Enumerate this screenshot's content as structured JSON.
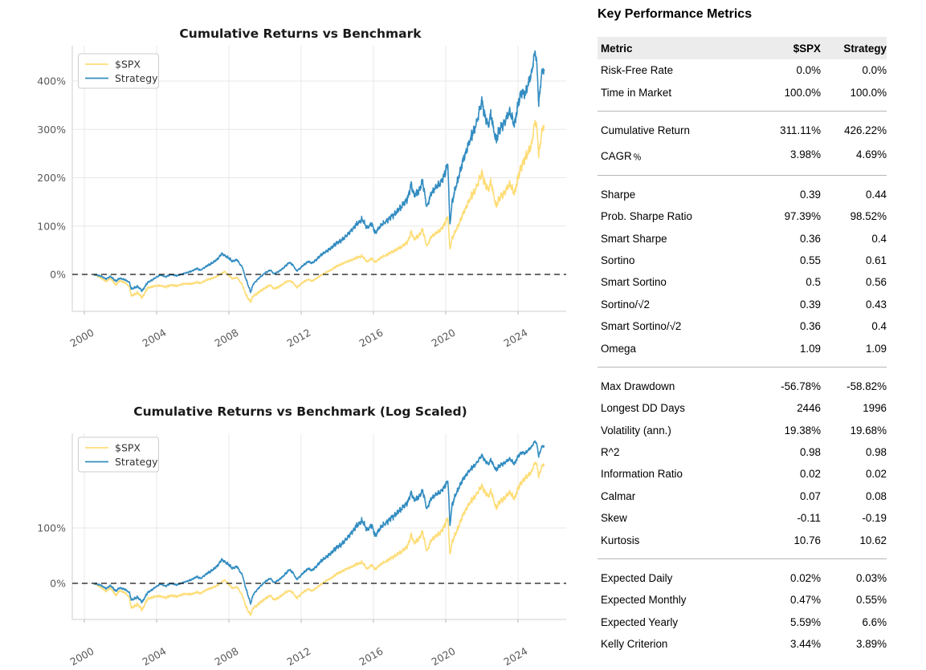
{
  "metrics_table": {
    "title": "Key Performance Metrics",
    "columns": [
      "Metric",
      "$SPX",
      "Strategy"
    ],
    "groups": [
      {
        "rows": [
          [
            "Risk-Free Rate",
            "0.0%",
            "0.0%"
          ],
          [
            "Time in Market",
            "100.0%",
            "100.0%"
          ]
        ]
      },
      {
        "rows": [
          [
            "Cumulative Return",
            "311.11%",
            "426.22%"
          ],
          [
            "CAGR﹪",
            "3.98%",
            "4.69%"
          ]
        ]
      },
      {
        "rows": [
          [
            "Sharpe",
            "0.39",
            "0.44"
          ],
          [
            "Prob. Sharpe Ratio",
            "97.39%",
            "98.52%"
          ],
          [
            "Smart Sharpe",
            "0.36",
            "0.4"
          ],
          [
            "Sortino",
            "0.55",
            "0.61"
          ],
          [
            "Smart Sortino",
            "0.5",
            "0.56"
          ],
          [
            "Sortino/√2",
            "0.39",
            "0.43"
          ],
          [
            "Smart Sortino/√2",
            "0.36",
            "0.4"
          ],
          [
            "Omega",
            "1.09",
            "1.09"
          ]
        ]
      },
      {
        "rows": [
          [
            "Max Drawdown",
            "-56.78%",
            "-58.82%"
          ],
          [
            "Longest DD Days",
            "2446",
            "1996"
          ],
          [
            "Volatility (ann.)",
            "19.38%",
            "19.68%"
          ],
          [
            "R^2",
            "0.98",
            "0.98"
          ],
          [
            "Information Ratio",
            "0.02",
            "0.02"
          ],
          [
            "Calmar",
            "0.07",
            "0.08"
          ],
          [
            "Skew",
            "-0.11",
            "-0.19"
          ],
          [
            "Kurtosis",
            "10.76",
            "10.62"
          ]
        ]
      },
      {
        "rows": [
          [
            "Expected Daily",
            "0.02%",
            "0.03%"
          ],
          [
            "Expected Monthly",
            "0.47%",
            "0.55%"
          ],
          [
            "Expected Yearly",
            "5.59%",
            "6.6%"
          ],
          [
            "Kelly Criterion",
            "3.44%",
            "3.89%"
          ]
        ]
      }
    ]
  },
  "chart_data": [
    {
      "type": "line",
      "title": "Cumulative Returns vs Benchmark",
      "y_scale": "linear",
      "y_axis_format": "percent",
      "x_ticks": [
        2000,
        2004,
        2008,
        2012,
        2016,
        2020,
        2024
      ],
      "x_range": [
        1999.3,
        2026.7
      ],
      "y_ticks_pct": [
        0,
        100,
        200,
        300,
        400
      ],
      "zero_line": "dashed-black",
      "grid": true,
      "legend_position": "upper-left",
      "series": [
        {
          "name": "$SPX",
          "color": "#fedd78",
          "final_value_pct": 311.11,
          "anchors": [
            [
              2000.55,
              0
            ],
            [
              2000.75,
              -4
            ],
            [
              2000.95,
              -8
            ],
            [
              2001.2,
              -14
            ],
            [
              2001.45,
              -8
            ],
            [
              2001.75,
              -22
            ],
            [
              2001.95,
              -13
            ],
            [
              2002.25,
              -17
            ],
            [
              2002.5,
              -26
            ],
            [
              2002.6,
              -44
            ],
            [
              2002.75,
              -42
            ],
            [
              2002.95,
              -38
            ],
            [
              2003.2,
              -48
            ],
            [
              2003.5,
              -28
            ],
            [
              2003.9,
              -24
            ],
            [
              2004.2,
              -23
            ],
            [
              2004.5,
              -26
            ],
            [
              2004.8,
              -22
            ],
            [
              2005.1,
              -24
            ],
            [
              2005.5,
              -19
            ],
            [
              2005.9,
              -20
            ],
            [
              2006.2,
              -16
            ],
            [
              2006.45,
              -18
            ],
            [
              2006.8,
              -11
            ],
            [
              2007.1,
              -8
            ],
            [
              2007.4,
              -3
            ],
            [
              2007.75,
              6
            ],
            [
              2007.95,
              0
            ],
            [
              2008.2,
              -9
            ],
            [
              2008.45,
              -6
            ],
            [
              2008.6,
              -14
            ],
            [
              2008.75,
              -22
            ],
            [
              2008.9,
              -38
            ],
            [
              2009.0,
              -46
            ],
            [
              2009.2,
              -57
            ],
            [
              2009.35,
              -44
            ],
            [
              2009.55,
              -40
            ],
            [
              2009.75,
              -34
            ],
            [
              2010.0,
              -28
            ],
            [
              2010.3,
              -22
            ],
            [
              2010.5,
              -30
            ],
            [
              2010.8,
              -25
            ],
            [
              2011.1,
              -17
            ],
            [
              2011.35,
              -13
            ],
            [
              2011.55,
              -17
            ],
            [
              2011.75,
              -27
            ],
            [
              2011.95,
              -21
            ],
            [
              2012.15,
              -15
            ],
            [
              2012.4,
              -10
            ],
            [
              2012.6,
              -14
            ],
            [
              2012.85,
              -8
            ],
            [
              2013.1,
              -2
            ],
            [
              2013.4,
              5
            ],
            [
              2013.7,
              10
            ],
            [
              2013.95,
              17
            ],
            [
              2014.2,
              21
            ],
            [
              2014.5,
              26
            ],
            [
              2014.8,
              30
            ],
            [
              2015.1,
              35
            ],
            [
              2015.4,
              38
            ],
            [
              2015.65,
              26
            ],
            [
              2015.9,
              33
            ],
            [
              2016.1,
              25
            ],
            [
              2016.4,
              35
            ],
            [
              2016.7,
              40
            ],
            [
              2016.95,
              45
            ],
            [
              2017.3,
              52
            ],
            [
              2017.6,
              58
            ],
            [
              2017.9,
              68
            ],
            [
              2018.1,
              88
            ],
            [
              2018.25,
              72
            ],
            [
              2018.5,
              80
            ],
            [
              2018.72,
              93
            ],
            [
              2018.95,
              57
            ],
            [
              2019.2,
              78
            ],
            [
              2019.45,
              85
            ],
            [
              2019.7,
              91
            ],
            [
              2019.95,
              105
            ],
            [
              2020.12,
              120
            ],
            [
              2020.23,
              52
            ],
            [
              2020.35,
              75
            ],
            [
              2020.55,
              90
            ],
            [
              2020.75,
              105
            ],
            [
              2020.95,
              125
            ],
            [
              2021.2,
              145
            ],
            [
              2021.45,
              165
            ],
            [
              2021.65,
              175
            ],
            [
              2021.85,
              195
            ],
            [
              2022.0,
              210
            ],
            [
              2022.15,
              190
            ],
            [
              2022.35,
              175
            ],
            [
              2022.5,
              190
            ],
            [
              2022.65,
              165
            ],
            [
              2022.78,
              142
            ],
            [
              2022.95,
              155
            ],
            [
              2023.1,
              162
            ],
            [
              2023.35,
              175
            ],
            [
              2023.55,
              188
            ],
            [
              2023.8,
              168
            ],
            [
              2024.0,
              200
            ],
            [
              2024.2,
              225
            ],
            [
              2024.4,
              240
            ],
            [
              2024.6,
              255
            ],
            [
              2024.75,
              270
            ],
            [
              2024.95,
              318
            ],
            [
              2025.05,
              300
            ],
            [
              2025.15,
              245
            ],
            [
              2025.3,
              292
            ],
            [
              2025.45,
              311
            ]
          ]
        },
        {
          "name": "Strategy",
          "color": "#348dc1",
          "final_value_pct": 426.22,
          "anchors": [
            [
              2000.55,
              0
            ],
            [
              2000.75,
              -2
            ],
            [
              2000.95,
              -4
            ],
            [
              2001.2,
              -9
            ],
            [
              2001.45,
              -4
            ],
            [
              2001.75,
              -14
            ],
            [
              2001.95,
              -8
            ],
            [
              2002.25,
              -11
            ],
            [
              2002.5,
              -17
            ],
            [
              2002.6,
              -30
            ],
            [
              2002.75,
              -28
            ],
            [
              2002.95,
              -25
            ],
            [
              2003.2,
              -34
            ],
            [
              2003.5,
              -17
            ],
            [
              2003.9,
              -8
            ],
            [
              2004.2,
              -1
            ],
            [
              2004.5,
              -5
            ],
            [
              2004.8,
              0
            ],
            [
              2005.1,
              -3
            ],
            [
              2005.5,
              2
            ],
            [
              2005.9,
              6
            ],
            [
              2006.2,
              12
            ],
            [
              2006.45,
              9
            ],
            [
              2006.8,
              18
            ],
            [
              2007.1,
              24
            ],
            [
              2007.4,
              33
            ],
            [
              2007.6,
              43
            ],
            [
              2007.8,
              38
            ],
            [
              2007.95,
              35
            ],
            [
              2008.2,
              27
            ],
            [
              2008.45,
              31
            ],
            [
              2008.6,
              22
            ],
            [
              2008.75,
              15
            ],
            [
              2008.9,
              -5
            ],
            [
              2009.0,
              -15
            ],
            [
              2009.2,
              -37
            ],
            [
              2009.35,
              -20
            ],
            [
              2009.55,
              -12
            ],
            [
              2009.75,
              -5
            ],
            [
              2010.0,
              3
            ],
            [
              2010.3,
              9
            ],
            [
              2010.5,
              1
            ],
            [
              2010.8,
              7
            ],
            [
              2011.1,
              16
            ],
            [
              2011.35,
              25
            ],
            [
              2011.55,
              19
            ],
            [
              2011.75,
              7
            ],
            [
              2011.95,
              13
            ],
            [
              2012.15,
              20
            ],
            [
              2012.4,
              27
            ],
            [
              2012.6,
              23
            ],
            [
              2012.85,
              31
            ],
            [
              2013.1,
              40
            ],
            [
              2013.4,
              48
            ],
            [
              2013.7,
              56
            ],
            [
              2013.95,
              65
            ],
            [
              2014.2,
              70
            ],
            [
              2014.5,
              80
            ],
            [
              2014.8,
              92
            ],
            [
              2015.1,
              105
            ],
            [
              2015.4,
              114
            ],
            [
              2015.65,
              96
            ],
            [
              2015.9,
              105
            ],
            [
              2016.1,
              85
            ],
            [
              2016.4,
              102
            ],
            [
              2016.7,
              110
            ],
            [
              2016.95,
              118
            ],
            [
              2017.3,
              130
            ],
            [
              2017.6,
              142
            ],
            [
              2017.9,
              158
            ],
            [
              2018.1,
              186
            ],
            [
              2018.25,
              162
            ],
            [
              2018.5,
              172
            ],
            [
              2018.72,
              193
            ],
            [
              2018.95,
              138
            ],
            [
              2019.2,
              168
            ],
            [
              2019.45,
              180
            ],
            [
              2019.7,
              188
            ],
            [
              2019.95,
              208
            ],
            [
              2020.12,
              229
            ],
            [
              2020.23,
              102
            ],
            [
              2020.35,
              150
            ],
            [
              2020.55,
              180
            ],
            [
              2020.75,
              205
            ],
            [
              2020.95,
              235
            ],
            [
              2021.2,
              262
            ],
            [
              2021.45,
              290
            ],
            [
              2021.65,
              305
            ],
            [
              2021.85,
              335
            ],
            [
              2022.0,
              360
            ],
            [
              2022.15,
              330
            ],
            [
              2022.35,
              308
            ],
            [
              2022.5,
              330
            ],
            [
              2022.65,
              300
            ],
            [
              2022.78,
              278
            ],
            [
              2022.95,
              295
            ],
            [
              2023.1,
              305
            ],
            [
              2023.35,
              322
            ],
            [
              2023.55,
              338
            ],
            [
              2023.8,
              310
            ],
            [
              2024.0,
              352
            ],
            [
              2024.2,
              378
            ],
            [
              2024.4,
              372
            ],
            [
              2024.6,
              398
            ],
            [
              2024.75,
              418
            ],
            [
              2024.95,
              462
            ],
            [
              2025.05,
              430
            ],
            [
              2025.15,
              350
            ],
            [
              2025.3,
              415
            ],
            [
              2025.45,
              426
            ]
          ]
        }
      ]
    },
    {
      "type": "line",
      "title": "Cumulative Returns vs Benchmark (Log Scaled)",
      "y_scale": "symlog",
      "y_axis_format": "percent",
      "x_ticks": [
        2000,
        2004,
        2008,
        2012,
        2016,
        2020,
        2024
      ],
      "x_range": [
        1999.3,
        2026.7
      ],
      "y_ticks_pct": [
        0,
        100
      ],
      "zero_line": "dashed-black",
      "grid": true,
      "legend_position": "upper-left",
      "series_from": 0
    }
  ]
}
